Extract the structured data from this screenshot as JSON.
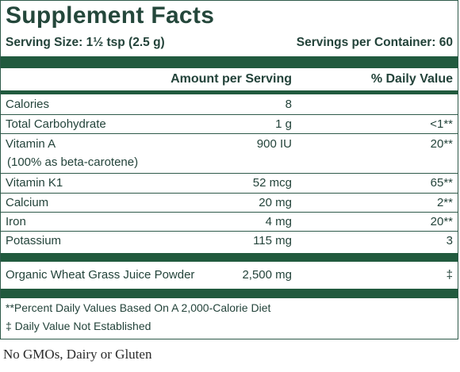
{
  "panel": {
    "title": "Supplement Facts",
    "serving_size": "Serving Size: 1½ tsp (2.5 g)",
    "servings_per_container": "Servings per Container: 60",
    "header_amount": "Amount per Serving",
    "header_dv": "% Daily Value",
    "nutrients": [
      {
        "name": "Calories",
        "amount": "8",
        "dv": ""
      },
      {
        "name": "Total Carbohydrate",
        "amount": "1 g",
        "dv": "<1**"
      },
      {
        "name": "Vitamin A",
        "amount": "900 IU",
        "dv": "20**",
        "note": "(100% as beta-carotene)"
      },
      {
        "name": "Vitamin K1",
        "amount": "52 mcg",
        "dv": "65**"
      },
      {
        "name": "Calcium",
        "amount": "20 mg",
        "dv": "2**"
      },
      {
        "name": "Iron",
        "amount": "4 mg",
        "dv": "20**"
      },
      {
        "name": "Potassium",
        "amount": "115 mg",
        "dv": "3"
      }
    ],
    "ingredient": {
      "name": "Organic Wheat Grass Juice Powder",
      "amount": "2,500 mg",
      "dv": "‡"
    },
    "footnotes": [
      "**Percent Daily Values Based On A 2,000-Calorie Diet",
      "‡  Daily Value Not Established"
    ]
  },
  "tagline": "No GMOs, Dairy or Gluten",
  "colors": {
    "bar": "#215a3e",
    "text": "#23433a"
  }
}
